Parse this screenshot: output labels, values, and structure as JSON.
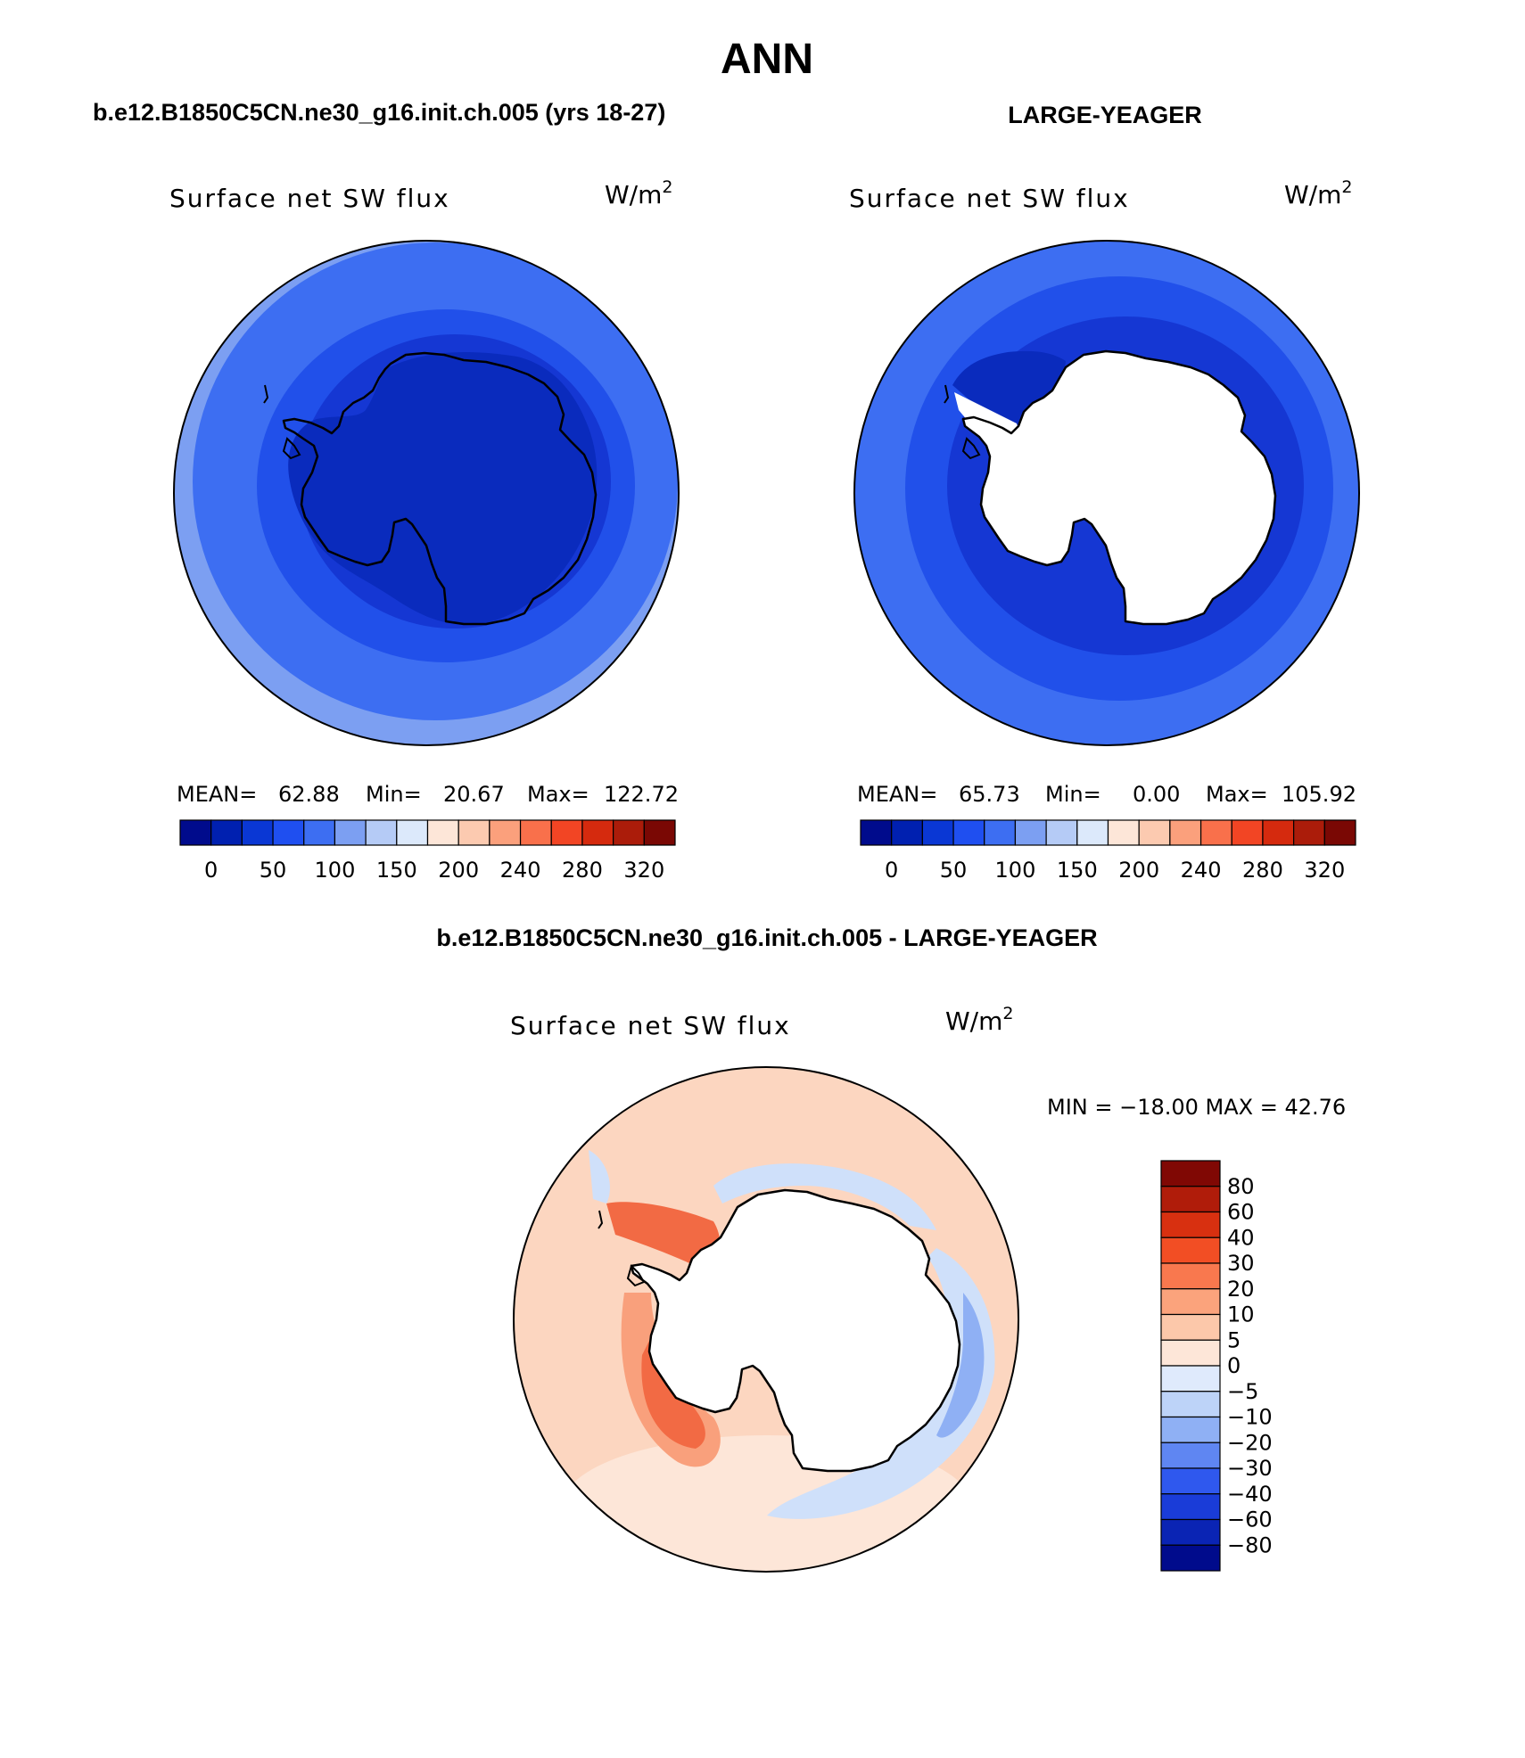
{
  "figure": {
    "title": "ANN",
    "panel_top_left": {
      "case_title": "b.e12.B1850C5CN.ne30_g16.init.ch.005 (yrs 18-27)",
      "variable": "Surface net SW flux",
      "units_base": "W/m",
      "units_exp": "2",
      "stats": {
        "mean_label": "MEAN=",
        "mean": "62.88",
        "min_label": "Min=",
        "min": "20.67",
        "max_label": "Max=",
        "max": "122.72"
      }
    },
    "panel_top_right": {
      "case_title": "LARGE-YEAGER",
      "variable": "Surface net SW flux",
      "units_base": "W/m",
      "units_exp": "2",
      "stats": {
        "mean_label": "MEAN=",
        "mean": "65.73",
        "min_label": "Min=",
        "min": "0.00",
        "max_label": "Max=",
        "max": "105.92"
      }
    },
    "panel_diff": {
      "case_title": "b.e12.B1850C5CN.ne30_g16.init.ch.005 - LARGE-YEAGER",
      "variable": "Surface net SW flux",
      "units_base": "W/m",
      "units_exp": "2",
      "minmax": "MIN = −18.00 MAX =   42.76"
    },
    "colorbar_abs": {
      "colors": [
        "#000b8c",
        "#0020b0",
        "#0a37d4",
        "#1f4ff0",
        "#3d6ef2",
        "#7c9ff2",
        "#b5cbf6",
        "#dce9fb",
        "#fde6d8",
        "#fccab0",
        "#fba07c",
        "#f9704b",
        "#f24524",
        "#d52a0e",
        "#ab1c0a",
        "#7a0804"
      ],
      "labels": [
        "0",
        "50",
        "100",
        "150",
        "200",
        "240",
        "280",
        "320"
      ]
    },
    "colorbar_diff": {
      "colors": [
        "#000b8c",
        "#0a24b4",
        "#1a3cd8",
        "#2f58ee",
        "#5f86f2",
        "#8fb0f4",
        "#bdd3f8",
        "#dfeafc",
        "#fde6d8",
        "#fcc8aa",
        "#fba37c",
        "#f9784e",
        "#f24e24",
        "#d83010",
        "#b01c0a",
        "#800804"
      ],
      "labels": [
        "80",
        "60",
        "40",
        "30",
        "20",
        "10",
        "5",
        "0",
        "−5",
        "−10",
        "−20",
        "−30",
        "−40",
        "−60",
        "−80"
      ]
    },
    "map_colors": {
      "deep": "#0a2bbd",
      "dark": "#1537d3",
      "mid": "#2150ea",
      "light": "#3d6ef2",
      "pale": "#7c9ff2",
      "land_white": "#ffffff",
      "diff_base": "#fcd6c0",
      "diff_light": "#fde6d8",
      "diff_mid": "#f9a07c",
      "diff_strong": "#f26a44",
      "diff_neg_light": "#cfe0fa",
      "diff_neg_mid": "#8fb0f4"
    }
  }
}
